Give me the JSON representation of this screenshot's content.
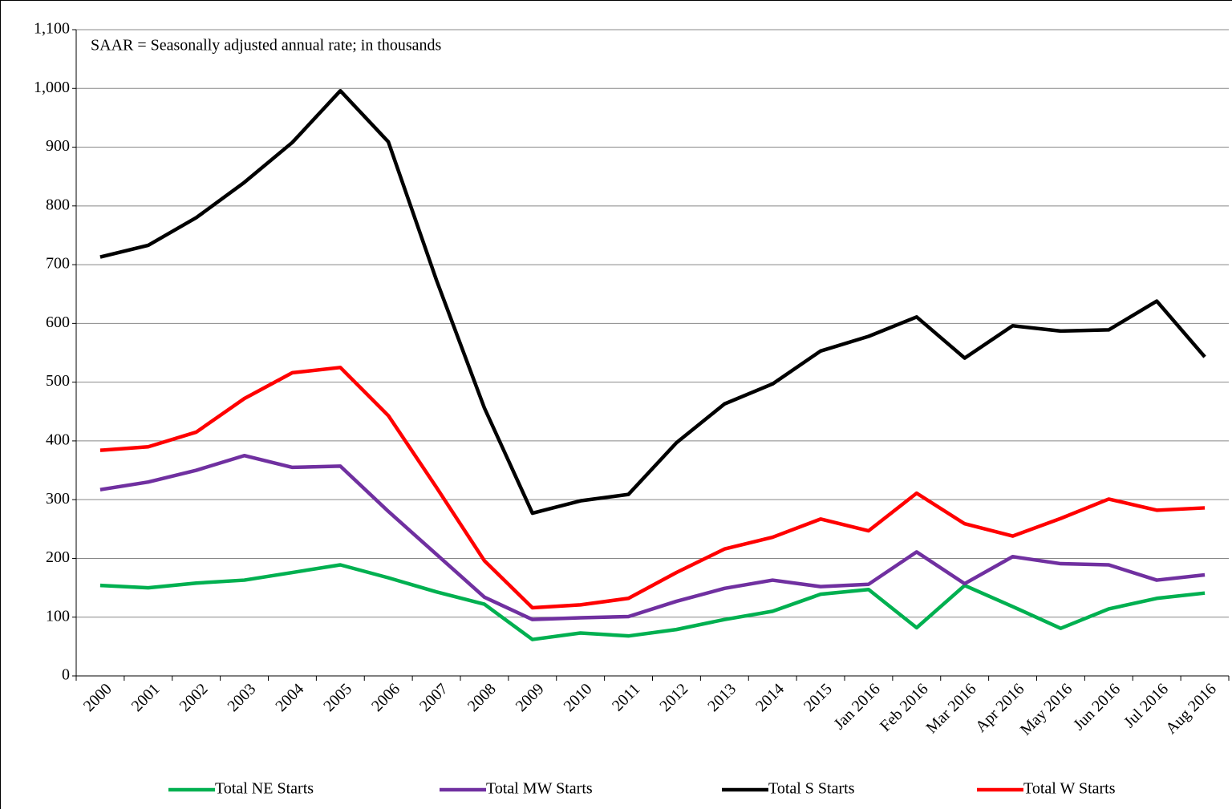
{
  "chart_data": {
    "type": "line",
    "annotation": "SAAR = Seasonally adjusted annual rate; in thousands",
    "categories": [
      "2000",
      "2001",
      "2002",
      "2003",
      "2004",
      "2005",
      "2006",
      "2007",
      "2008",
      "2009",
      "2010",
      "2011",
      "2012",
      "2013",
      "2014",
      "2015",
      "Jan 2016",
      "Feb 2016",
      "Mar 2016",
      "Apr 2016",
      "May 2016",
      "Jun 2016",
      "Jul 2016",
      "Aug 2016"
    ],
    "series": [
      {
        "name": "Total NE Starts",
        "color": "#00b050",
        "values": [
          154,
          150,
          158,
          163,
          176,
          189,
          167,
          143,
          122,
          62,
          73,
          68,
          79,
          96,
          110,
          139,
          147,
          82,
          154,
          118,
          81,
          114,
          132,
          141
        ]
      },
      {
        "name": "Total MW Starts",
        "color": "#7030a0",
        "values": [
          317,
          330,
          350,
          375,
          355,
          357,
          280,
          207,
          134,
          96,
          99,
          101,
          127,
          149,
          163,
          152,
          156,
          211,
          157,
          203,
          191,
          189,
          163,
          172
        ]
      },
      {
        "name": "Total S Starts",
        "color": "#000000",
        "values": [
          713,
          733,
          780,
          840,
          908,
          996,
          909,
          674,
          456,
          277,
          298,
          309,
          397,
          463,
          497,
          553,
          578,
          611,
          541,
          596,
          587,
          589,
          638,
          543
        ]
      },
      {
        "name": "Total W Starts",
        "color": "#ff0000",
        "values": [
          384,
          390,
          415,
          472,
          516,
          525,
          443,
          321,
          196,
          116,
          121,
          132,
          176,
          216,
          236,
          267,
          247,
          311,
          259,
          238,
          268,
          301,
          282,
          286
        ]
      }
    ],
    "ylim": [
      0,
      1100
    ],
    "yticks": [
      0,
      100,
      200,
      300,
      400,
      500,
      600,
      700,
      800,
      900,
      {
        "value": 1000,
        "label": "1,000"
      },
      {
        "value": 1100,
        "label": "1,100"
      }
    ],
    "grid": true
  }
}
